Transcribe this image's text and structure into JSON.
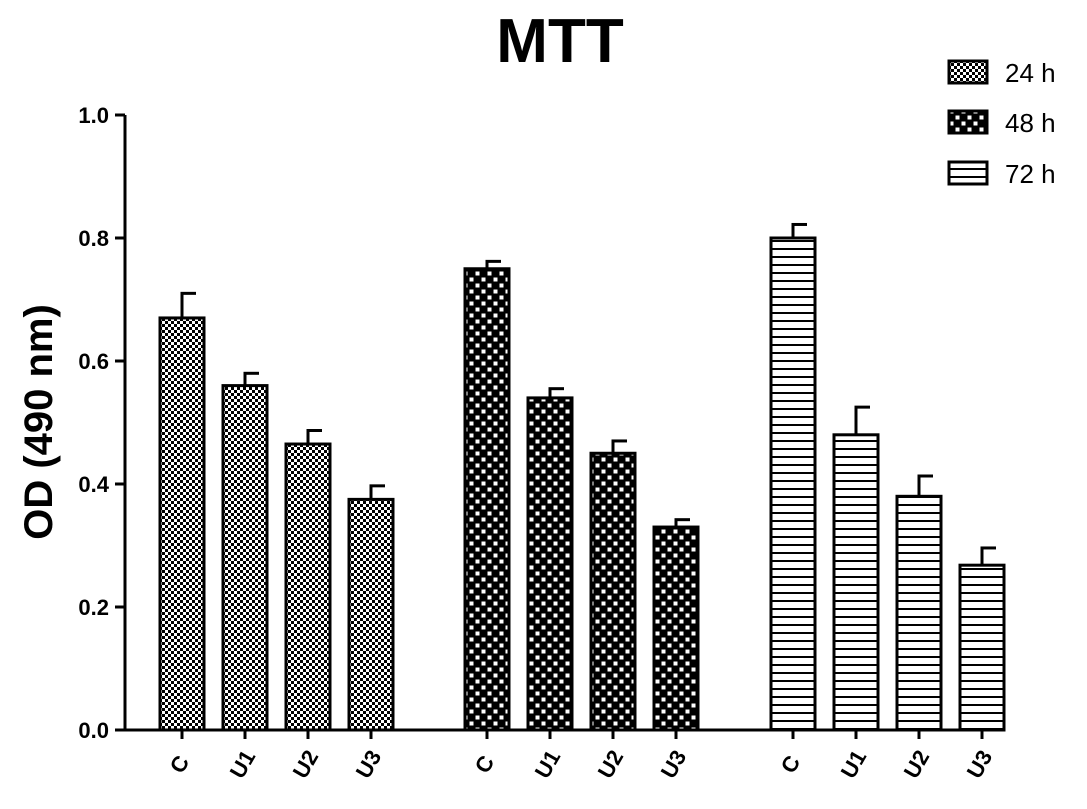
{
  "chart_data": {
    "type": "bar",
    "title": "MTT",
    "ylabel": "OD (490 nm)",
    "xlabel": "",
    "ylim": [
      0.0,
      1.0
    ],
    "yticks": [
      "0.0",
      "0.2",
      "0.4",
      "0.6",
      "0.8",
      "1.0"
    ],
    "grid": false,
    "legend_position": "top-right",
    "categories": [
      "C",
      "U1",
      "U2",
      "U3"
    ],
    "series": [
      {
        "name": "24 h",
        "pattern": "checker-fine",
        "values": [
          0.67,
          0.56,
          0.465,
          0.375
        ],
        "errors": [
          0.04,
          0.02,
          0.022,
          0.022
        ]
      },
      {
        "name": "48 h",
        "pattern": "checker-coarse",
        "values": [
          0.75,
          0.54,
          0.45,
          0.33
        ],
        "errors": [
          0.012,
          0.015,
          0.02,
          0.012
        ]
      },
      {
        "name": "72 h",
        "pattern": "horizontal-lines",
        "values": [
          0.8,
          0.48,
          0.38,
          0.268
        ],
        "errors": [
          0.022,
          0.045,
          0.033,
          0.028
        ]
      }
    ]
  }
}
